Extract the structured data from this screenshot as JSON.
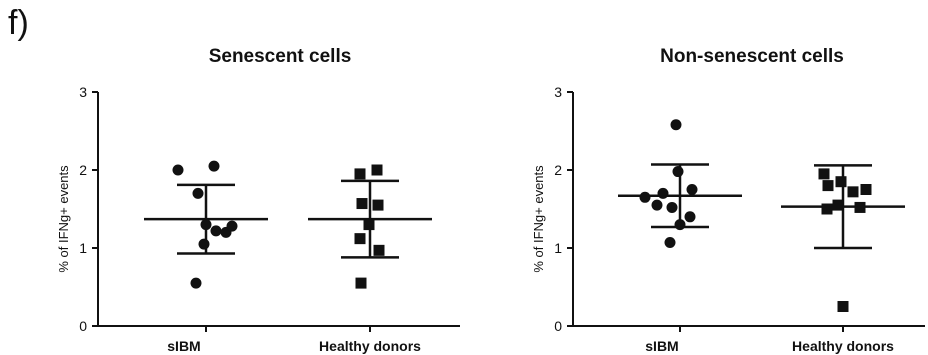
{
  "panel_label": "f)",
  "chart_data": [
    {
      "type": "scatter",
      "title": "Senescent cells",
      "ylabel": "% of IFNg+ events",
      "ylim": [
        0,
        3
      ],
      "yticks": [
        "0",
        "1",
        "2",
        "3"
      ],
      "categories": [
        "sIBM",
        "Healthy donors"
      ],
      "series": [
        {
          "category": "sIBM",
          "marker": "circle",
          "values": [
            2.05,
            2.0,
            1.7,
            1.3,
            1.22,
            1.2,
            1.28,
            1.05,
            0.55
          ],
          "mean": 1.37,
          "sd": 0.44
        },
        {
          "category": "Healthy donors",
          "marker": "square",
          "values": [
            2.0,
            1.95,
            1.57,
            1.55,
            1.3,
            1.12,
            0.97,
            0.55
          ],
          "mean": 1.37,
          "sd": 0.49
        }
      ]
    },
    {
      "type": "scatter",
      "title": "Non-senescent cells",
      "ylabel": "% of IFNg+ events",
      "ylim": [
        0,
        3
      ],
      "yticks": [
        "0",
        "1",
        "2",
        "3"
      ],
      "categories": [
        "sIBM",
        "Healthy donors"
      ],
      "series": [
        {
          "category": "sIBM",
          "marker": "circle",
          "values": [
            2.58,
            1.98,
            1.7,
            1.65,
            1.75,
            1.55,
            1.52,
            1.4,
            1.3,
            1.07
          ],
          "mean": 1.67,
          "sd": 0.4
        },
        {
          "category": "Healthy donors",
          "marker": "square",
          "values": [
            1.95,
            1.85,
            1.8,
            1.75,
            1.72,
            1.55,
            1.52,
            1.5,
            0.25
          ],
          "mean": 1.53,
          "sd": 0.53
        }
      ]
    }
  ]
}
